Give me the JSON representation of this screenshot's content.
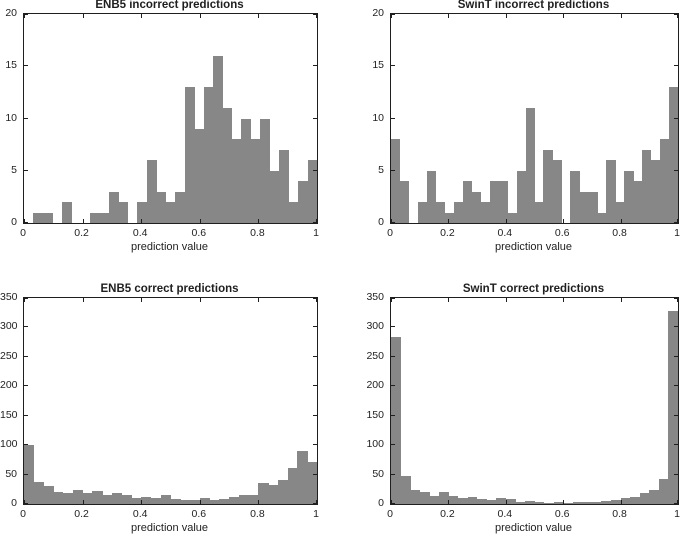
{
  "figure": {
    "background": "#ffffff",
    "bar_color": "#878787",
    "axis_color": "#1f1f1f"
  },
  "chart_data": [
    {
      "type": "bar",
      "subtype": "histogram",
      "title": "ENB5 incorrect predictions",
      "xlabel": "prediction value",
      "x_range": [
        0,
        1
      ],
      "ylim": [
        0,
        20
      ],
      "grid": false,
      "legend": false,
      "xtick_values": [
        0,
        0.2,
        0.4,
        0.6,
        0.8,
        1
      ],
      "xtick_labels": [
        "0",
        "0.2",
        "0.4",
        "0.6",
        "0.8",
        "1"
      ],
      "ytick_values": [
        0,
        5,
        10,
        15,
        20
      ],
      "ytick_labels": [
        "0",
        "5",
        "10",
        "15",
        "20"
      ],
      "bin_counts": [
        0,
        1,
        1,
        0,
        2,
        0,
        0,
        1,
        1,
        3,
        2,
        0,
        2,
        6,
        3,
        2,
        3,
        13,
        9,
        13,
        16,
        11,
        8,
        10,
        8,
        10,
        5,
        7,
        2,
        4,
        6
      ]
    },
    {
      "type": "bar",
      "subtype": "histogram",
      "title": "SwinT incorrect predictions",
      "xlabel": "prediction value",
      "x_range": [
        0,
        1
      ],
      "ylim": [
        0,
        20
      ],
      "grid": false,
      "legend": false,
      "xtick_values": [
        0,
        0.2,
        0.4,
        0.6,
        0.8,
        1
      ],
      "xtick_labels": [
        "0",
        "0.2",
        "0.4",
        "0.6",
        "0.8",
        "1"
      ],
      "ytick_values": [
        0,
        5,
        10,
        15,
        20
      ],
      "ytick_labels": [
        "0",
        "5",
        "10",
        "15",
        "20"
      ],
      "bin_counts": [
        8,
        4,
        0,
        2,
        5,
        2,
        1,
        2,
        4,
        3,
        2,
        4,
        4,
        1,
        5,
        11,
        2,
        7,
        6,
        0,
        5,
        3,
        3,
        1,
        6,
        2,
        5,
        4,
        7,
        6,
        8,
        13
      ]
    },
    {
      "type": "bar",
      "subtype": "histogram",
      "title": "ENB5 correct predictions",
      "xlabel": "prediction value",
      "x_range": [
        0,
        1
      ],
      "ylim": [
        0,
        350
      ],
      "grid": false,
      "legend": false,
      "xtick_values": [
        0,
        0.2,
        0.4,
        0.6,
        0.8,
        1
      ],
      "xtick_labels": [
        "0",
        "0.2",
        "0.4",
        "0.6",
        "0.8",
        "1"
      ],
      "ytick_values": [
        0,
        50,
        100,
        150,
        200,
        250,
        300,
        350
      ],
      "ytick_labels": [
        "0",
        "50",
        "100",
        "150",
        "200",
        "250",
        "300",
        "350"
      ],
      "bin_counts": [
        100,
        37,
        30,
        20,
        18,
        24,
        18,
        22,
        15,
        18,
        15,
        10,
        12,
        11,
        16,
        8,
        6,
        7,
        10,
        7,
        9,
        12,
        16,
        15,
        35,
        32,
        40,
        62,
        90,
        72
      ]
    },
    {
      "type": "bar",
      "subtype": "histogram",
      "title": "SwinT correct predictions",
      "xlabel": "prediction value",
      "x_range": [
        0,
        1
      ],
      "ylim": [
        0,
        350
      ],
      "grid": false,
      "legend": false,
      "xtick_values": [
        0,
        0.2,
        0.4,
        0.6,
        0.8,
        1
      ],
      "xtick_labels": [
        "0",
        "0.2",
        "0.4",
        "0.6",
        "0.8",
        "1"
      ],
      "ytick_values": [
        0,
        50,
        100,
        150,
        200,
        250,
        300,
        350
      ],
      "ytick_labels": [
        "0",
        "50",
        "100",
        "150",
        "200",
        "250",
        "300",
        "350"
      ],
      "bin_counts": [
        283,
        48,
        24,
        20,
        13,
        20,
        14,
        10,
        12,
        9,
        6,
        10,
        8,
        4,
        5,
        3,
        2,
        4,
        2,
        3,
        3,
        3,
        5,
        7,
        10,
        12,
        18,
        24,
        42,
        328
      ]
    }
  ]
}
